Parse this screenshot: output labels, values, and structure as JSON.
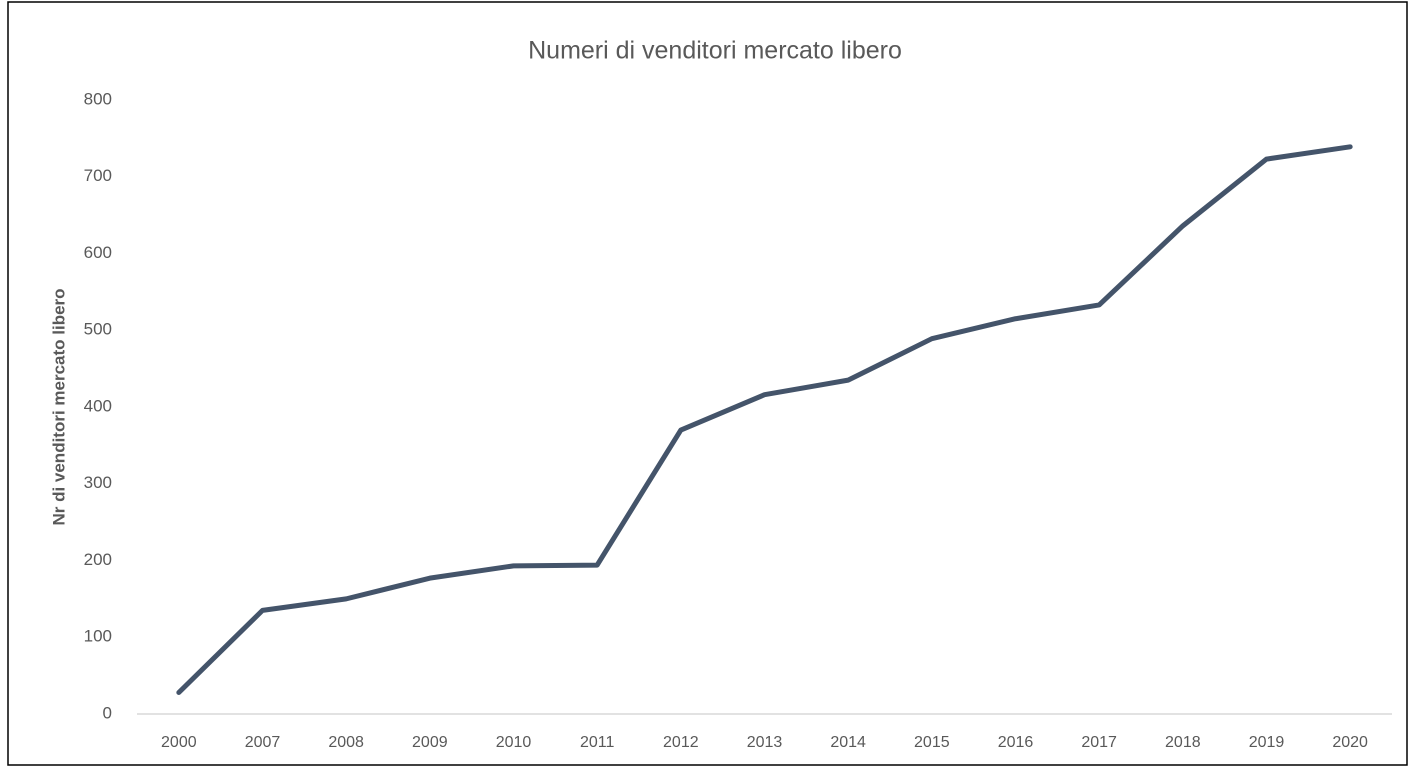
{
  "chart_data": {
    "type": "line",
    "title": "Numeri di venditori mercato libero",
    "y_label": "Nr di venditori mercato libero",
    "categories": [
      "2000",
      "2007",
      "2008",
      "2009",
      "2010",
      "2011",
      "2012",
      "2013",
      "2014",
      "2015",
      "2016",
      "2017",
      "2018",
      "2019",
      "2020"
    ],
    "values": [
      28,
      135,
      150,
      177,
      193,
      194,
      370,
      416,
      435,
      489,
      515,
      533,
      636,
      723,
      739
    ],
    "color": "#44546a",
    "ylim": [
      0,
      800
    ],
    "yticks": [
      0,
      100,
      200,
      300,
      400,
      500,
      600,
      700,
      800
    ],
    "grid": false
  }
}
